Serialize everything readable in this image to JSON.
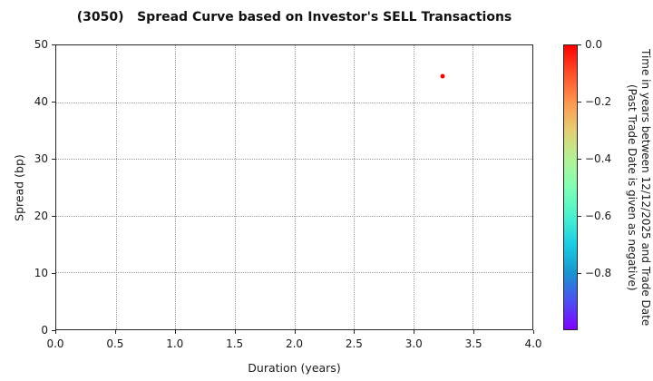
{
  "title": "(3050)   Spread Curve based on Investor's SELL Transactions",
  "chart_data": {
    "type": "scatter",
    "title": "(3050)   Spread Curve based on Investor's SELL Transactions",
    "xlabel": "Duration (years)",
    "ylabel": "Spread (bp)",
    "xlim": [
      0.0,
      4.0
    ],
    "ylim": [
      0,
      50
    ],
    "grid": true,
    "grid_style": "dotted",
    "x_ticks": [
      {
        "value": 0.0,
        "label": "0.0"
      },
      {
        "value": 0.5,
        "label": "0.5"
      },
      {
        "value": 1.0,
        "label": "1.0"
      },
      {
        "value": 1.5,
        "label": "1.5"
      },
      {
        "value": 2.0,
        "label": "2.0"
      },
      {
        "value": 2.5,
        "label": "2.5"
      },
      {
        "value": 3.0,
        "label": "3.0"
      },
      {
        "value": 3.5,
        "label": "3.5"
      },
      {
        "value": 4.0,
        "label": "4.0"
      }
    ],
    "y_ticks": [
      {
        "value": 0,
        "label": "0"
      },
      {
        "value": 10,
        "label": "10"
      },
      {
        "value": 20,
        "label": "20"
      },
      {
        "value": 30,
        "label": "30"
      },
      {
        "value": 40,
        "label": "40"
      },
      {
        "value": 50,
        "label": "50"
      }
    ],
    "points": [
      {
        "duration": 3.24,
        "spread_bp": 44.5,
        "time_value": 0.0,
        "color": "#ff0000"
      }
    ],
    "colorbar": {
      "label_line1": "Time in years between 12/12/2025 and Trade Date",
      "label_line2": "(Past Trade Date is given as negative)",
      "colormap": "rainbow",
      "range_bottom_to_top": [
        -1.0,
        0.0
      ],
      "ticks": [
        {
          "value": 0.0,
          "label": "0.0"
        },
        {
          "value": -0.2,
          "label": "−0.2"
        },
        {
          "value": -0.4,
          "label": "−0.4"
        },
        {
          "value": -0.6,
          "label": "−0.6"
        },
        {
          "value": -0.8,
          "label": "−0.8"
        }
      ],
      "gradient_top_to_bottom": [
        {
          "at": 0.0,
          "color": "#ff0000"
        },
        {
          "at": 0.1,
          "color": "#ff4f28"
        },
        {
          "at": 0.2,
          "color": "#ff964f"
        },
        {
          "at": 0.3,
          "color": "#e5ce74"
        },
        {
          "at": 0.4,
          "color": "#b2f296"
        },
        {
          "at": 0.5,
          "color": "#80ffb4"
        },
        {
          "at": 0.6,
          "color": "#4cf2ce"
        },
        {
          "at": 0.7,
          "color": "#19cee3"
        },
        {
          "at": 0.8,
          "color": "#1996ce"
        },
        {
          "at": 0.9,
          "color": "#4c4ff2"
        },
        {
          "at": 1.0,
          "color": "#8000ff"
        }
      ]
    }
  }
}
